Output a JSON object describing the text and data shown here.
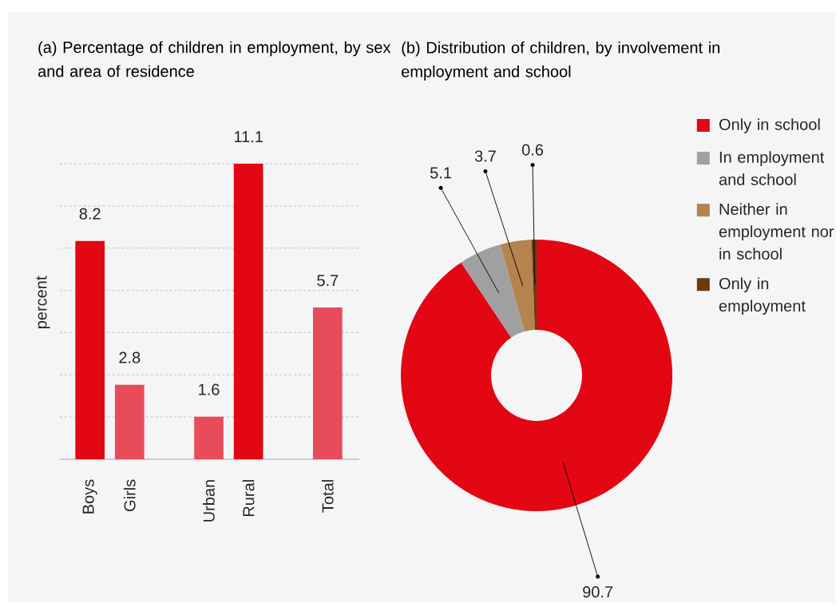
{
  "chart_data": [
    {
      "type": "bar",
      "title": "(a) Percentage of children in employment, by sex and area of residence",
      "ylabel": "percent",
      "categories": [
        "Boys",
        "Girls",
        null,
        "Urban",
        "Rural",
        null,
        "Total"
      ],
      "values": [
        8.2,
        2.8,
        null,
        1.6,
        11.1,
        null,
        5.7
      ],
      "colors": [
        "#e30613",
        "#e84c5a",
        null,
        "#e84c5a",
        "#e30613",
        null,
        "#e84c5a"
      ],
      "ylim": [
        0,
        11.1
      ],
      "yticks": [
        {
          "value": 1.59,
          "label": null
        },
        {
          "value": 3.17,
          "label": null
        },
        {
          "value": 4.76,
          "label": null
        },
        {
          "value": 6.34,
          "label": null
        },
        {
          "value": 7.93,
          "label": null
        },
        {
          "value": 9.51,
          "label": null
        },
        {
          "value": 11.1,
          "label": null
        }
      ],
      "grid": "y",
      "data_labels": true,
      "tick_labels": "x"
    },
    {
      "type": "donut",
      "title": "(b) Distribution of children, by involvement in employment and school",
      "categories": [
        "Only in school",
        "In employment and school",
        "Neither in employment nor in school",
        "Only in employment"
      ],
      "values": [
        90.7,
        5.1,
        3.7,
        0.6
      ],
      "colors": [
        "#e30613",
        "#a0a0a0",
        "#b5834c",
        "#6b3a11"
      ],
      "data_labels": true,
      "legend": "right"
    }
  ]
}
